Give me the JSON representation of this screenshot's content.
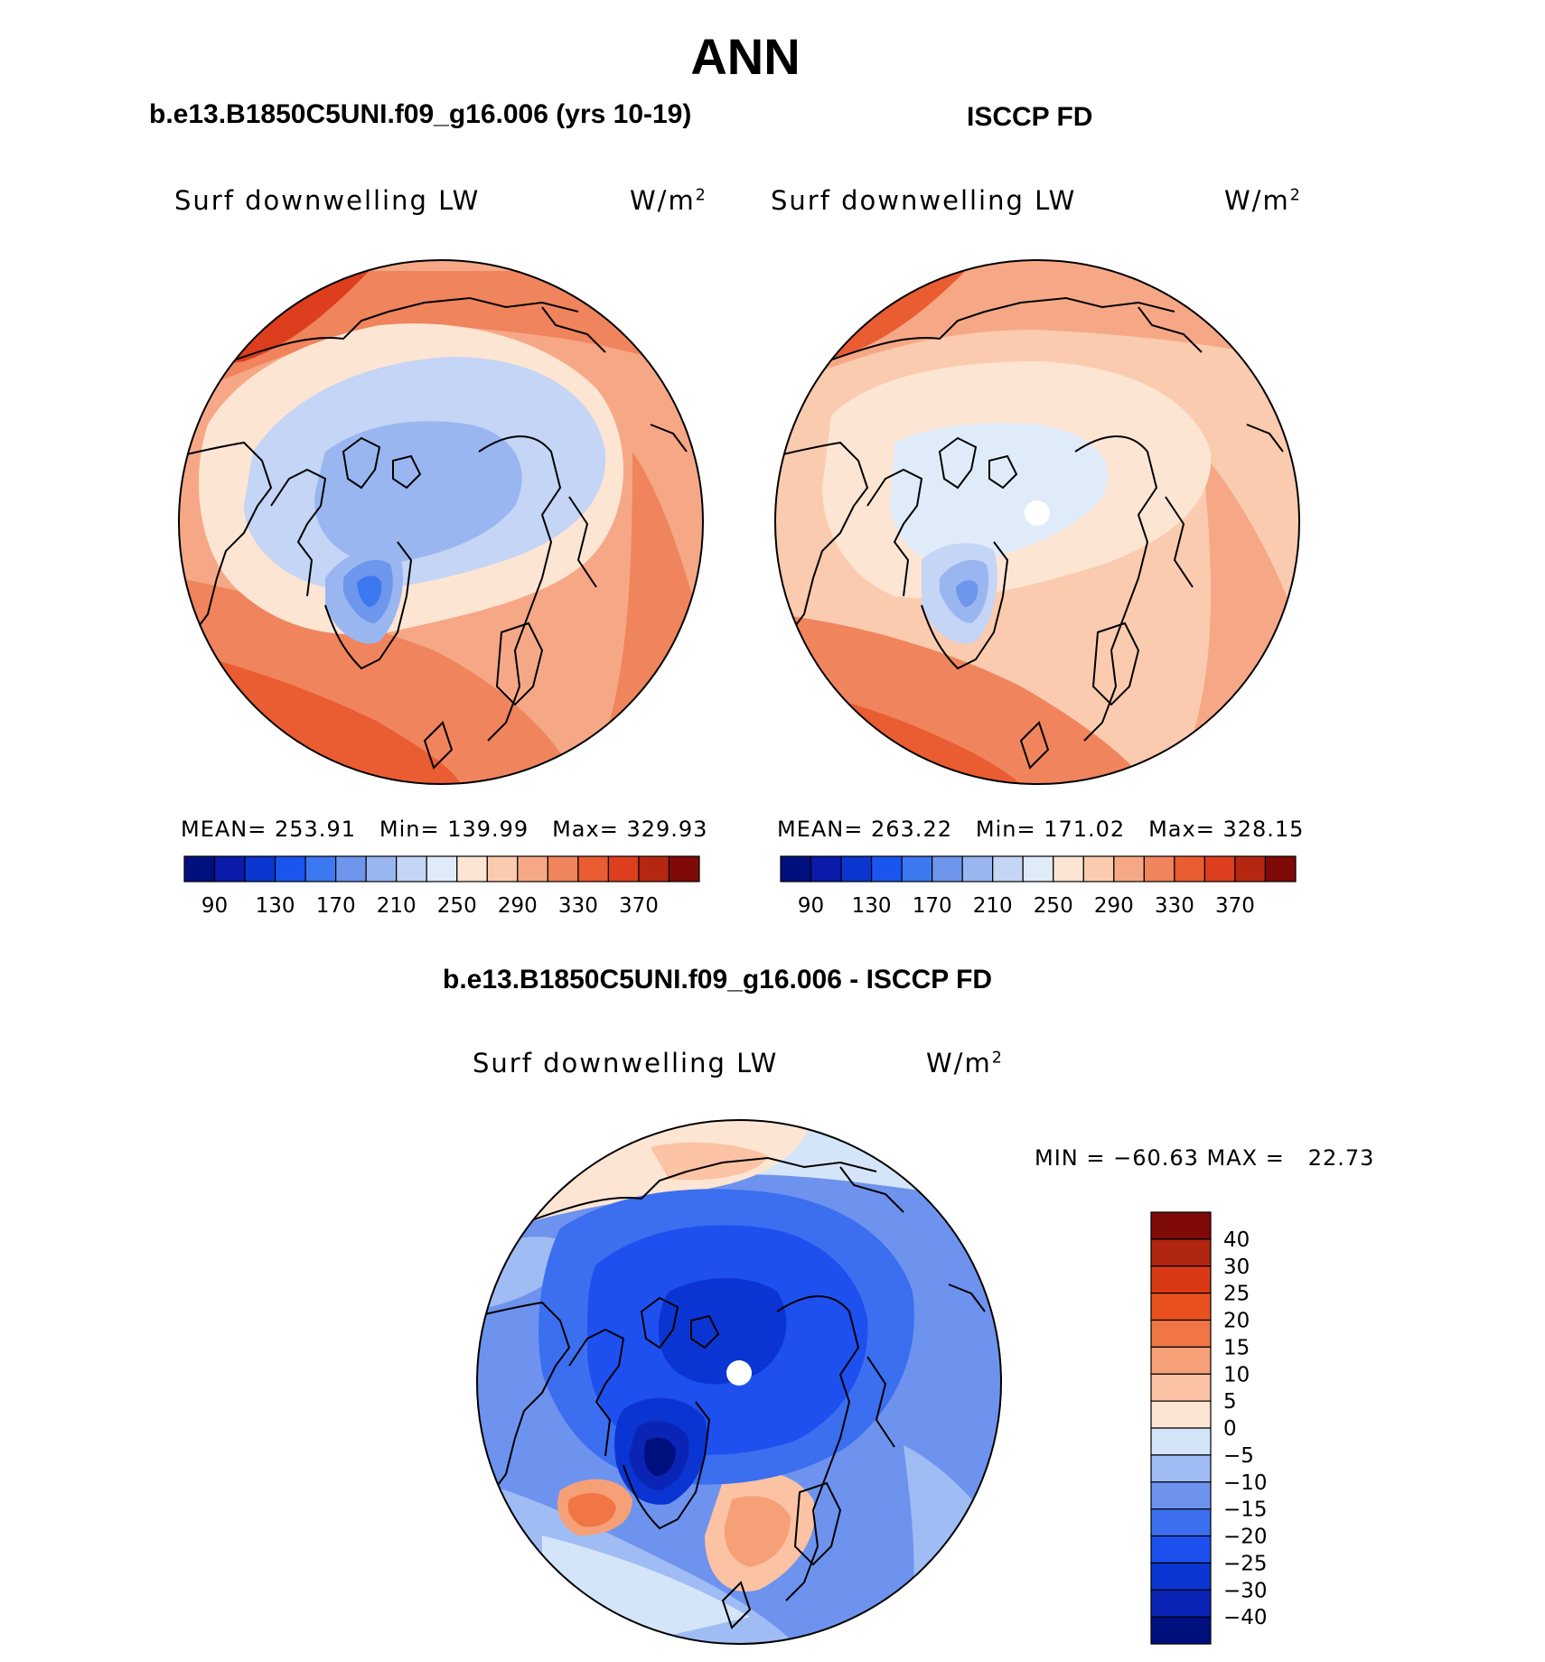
{
  "figure": {
    "title": "ANN",
    "panel_left_title": "b.e13.B1850C5UNI.f09_g16.006 (yrs 10-19)",
    "panel_right_title": "ISCCP FD",
    "diff_title": "b.e13.B1850C5UNI.f09_g16.006 - ISCCP FD"
  },
  "colors": {
    "absolute_levels": [
      "#000f7e",
      "#0a1aab",
      "#0b35cf",
      "#1a55f0",
      "#3c78ef",
      "#6d96ec",
      "#9ab6f0",
      "#c4d5f5",
      "#e0ebf9",
      "#fde5d3",
      "#fbcbaf",
      "#f6a886",
      "#f0845d",
      "#ea5c32",
      "#dd3e1e",
      "#b62712",
      "#7f0a08"
    ],
    "diff_levels": [
      "#000f7e",
      "#0a25b5",
      "#0b35d2",
      "#1d50ef",
      "#3c6fef",
      "#6d93ee",
      "#a0bcf4",
      "#d5e5f9",
      "#fde5d3",
      "#fbc2a4",
      "#f6a078",
      "#f07645",
      "#e9521f",
      "#d93a15",
      "#b02610",
      "#7f0a08"
    ]
  },
  "chart_data": [
    {
      "type": "heatmap",
      "projection": "north-polar-stereographic",
      "variable": "Surf downwelling LW",
      "units": "W/m",
      "units_sup": "2",
      "stats": {
        "mean_label": "MEAN=",
        "mean": "253.91",
        "min_label": "Min=",
        "min": "139.99",
        "max_label": "Max=",
        "max": "329.93"
      },
      "colorbar_ticks": [
        "90",
        "130",
        "170",
        "210",
        "250",
        "290",
        "330",
        "370"
      ],
      "colorbar_orientation": "horizontal"
    },
    {
      "type": "heatmap",
      "projection": "north-polar-stereographic",
      "variable": "Surf downwelling LW",
      "units": "W/m",
      "units_sup": "2",
      "stats": {
        "mean_label": "MEAN=",
        "mean": "263.22",
        "min_label": "Min=",
        "min": "171.02",
        "max_label": "Max=",
        "max": "328.15"
      },
      "colorbar_ticks": [
        "90",
        "130",
        "170",
        "210",
        "250",
        "290",
        "330",
        "370"
      ],
      "colorbar_orientation": "horizontal"
    },
    {
      "type": "heatmap",
      "projection": "north-polar-stereographic",
      "variable": "Surf downwelling LW",
      "units": "W/m",
      "units_sup": "2",
      "stats_text": "MIN = −60.63 MAX =   22.73",
      "colorbar_ticks": [
        "40",
        "30",
        "25",
        "20",
        "15",
        "10",
        "5",
        "0",
        "−5",
        "−10",
        "−15",
        "−20",
        "−25",
        "−30",
        "−40"
      ],
      "colorbar_orientation": "vertical"
    }
  ]
}
